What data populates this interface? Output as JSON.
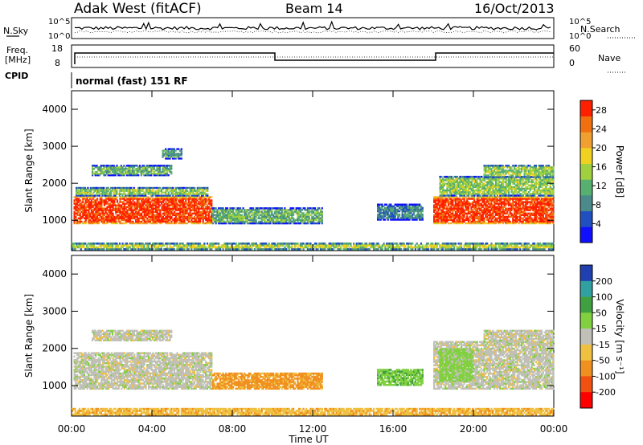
{
  "header": {
    "station": "Adak West (fitACF)",
    "beam": "Beam 14",
    "date": "16/Oct/2013"
  },
  "status_panels": {
    "nsky_label": "N.Sky",
    "nsearch_label": "N.Search",
    "freq_label": "Freq.",
    "freq_unit": "[MHz]",
    "nave_label": "Nave",
    "cpid_label": "CPID",
    "cpid_text": "normal (fast) 151 RF",
    "noise_ticks": [
      "10^5",
      "10^0"
    ],
    "freq_ticks": [
      "18",
      "8"
    ],
    "nave_ticks": [
      "60",
      "0"
    ]
  },
  "chart_data": [
    {
      "type": "heatmap",
      "title": "",
      "xlabel": "Time UT",
      "ylabel": "Slant Range [km]",
      "x_ticks": [
        "00:00",
        "04:00",
        "08:00",
        "12:00",
        "16:00",
        "20:00",
        "00:00"
      ],
      "xlim_hours": [
        0,
        24
      ],
      "y_ticks": [
        1000,
        2000,
        3000,
        4000
      ],
      "ylim": [
        180,
        4500
      ],
      "colorbar": {
        "label": "Power [dB]",
        "ticks": [
          4,
          8,
          12,
          16,
          20,
          24,
          28
        ],
        "range": [
          0,
          30
        ],
        "colors": [
          "#1010ff",
          "#2050c0",
          "#4a8a8a",
          "#58b070",
          "#a0d040",
          "#f0d020",
          "#f0a030",
          "#f07010",
          "#ff2000"
        ]
      },
      "regions": [
        {
          "t0": 0.1,
          "t1": 7.0,
          "r0": 900,
          "r1": 1650,
          "power": 28
        },
        {
          "t0": 0.2,
          "t1": 6.8,
          "r0": 1650,
          "r1": 1900,
          "power": 14
        },
        {
          "t0": 1.0,
          "t1": 5.0,
          "r0": 2200,
          "r1": 2500,
          "power": 12
        },
        {
          "t0": 4.5,
          "t1": 5.5,
          "r0": 2650,
          "r1": 2950,
          "power": 10
        },
        {
          "t0": 7.0,
          "t1": 12.5,
          "r0": 900,
          "r1": 1350,
          "power": 12
        },
        {
          "t0": 15.2,
          "t1": 17.5,
          "r0": 1000,
          "r1": 1450,
          "power": 8
        },
        {
          "t0": 18.0,
          "t1": 24.0,
          "r0": 900,
          "r1": 1650,
          "power": 28
        },
        {
          "t0": 18.3,
          "t1": 24.0,
          "r0": 1650,
          "r1": 2200,
          "power": 14
        },
        {
          "t0": 20.5,
          "t1": 24.0,
          "r0": 2150,
          "r1": 2500,
          "power": 14
        },
        {
          "t0": 0.0,
          "t1": 24.0,
          "r0": 200,
          "r1": 400,
          "power": 16
        }
      ]
    },
    {
      "type": "heatmap",
      "title": "",
      "xlabel": "Time UT",
      "ylabel": "Slant Range [km]",
      "x_ticks": [
        "00:00",
        "04:00",
        "08:00",
        "12:00",
        "16:00",
        "20:00",
        "00:00"
      ],
      "xlim_hours": [
        0,
        24
      ],
      "y_ticks": [
        1000,
        2000,
        3000,
        4000
      ],
      "ylim": [
        180,
        4500
      ],
      "colorbar": {
        "label": "Velocity [m s⁻¹]",
        "ticks": [
          "200",
          "100",
          "50",
          "15",
          "-15",
          "-50",
          "-100",
          "-200"
        ],
        "colors": [
          "#2040b0",
          "#30a0a0",
          "#40a040",
          "#80d040",
          "#c0c0b8",
          "#f0c040",
          "#f09020",
          "#f05010",
          "#ff0000"
        ]
      },
      "regions": [
        {
          "t0": 0.1,
          "t1": 7.0,
          "r0": 900,
          "r1": 1900,
          "velocity": 0
        },
        {
          "t0": 1.0,
          "t1": 5.0,
          "r0": 2200,
          "r1": 2500,
          "velocity": 0
        },
        {
          "t0": 7.0,
          "t1": 12.5,
          "r0": 900,
          "r1": 1350,
          "velocity": -60
        },
        {
          "t0": 15.2,
          "t1": 17.5,
          "r0": 1000,
          "r1": 1450,
          "velocity": 40
        },
        {
          "t0": 18.0,
          "t1": 24.0,
          "r0": 900,
          "r1": 2200,
          "velocity": 0
        },
        {
          "t0": 18.3,
          "t1": 20.0,
          "r0": 1100,
          "r1": 2000,
          "velocity": 30
        },
        {
          "t0": 20.5,
          "t1": 24.0,
          "r0": 2150,
          "r1": 2500,
          "velocity": 0
        },
        {
          "t0": 0.0,
          "t1": 24.0,
          "r0": 200,
          "r1": 400,
          "velocity": -40
        }
      ]
    }
  ]
}
